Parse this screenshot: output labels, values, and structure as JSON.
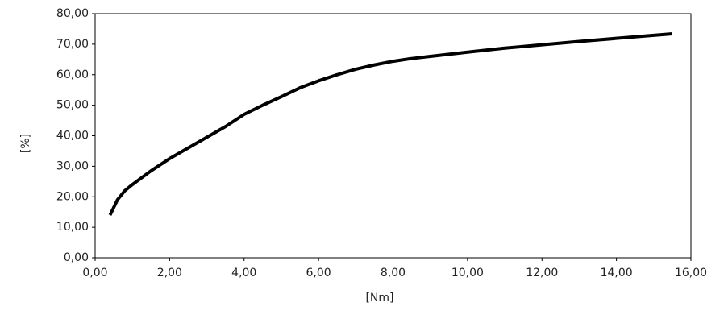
{
  "chart_data": {
    "type": "line",
    "x_label": "[Nm]",
    "y_label": "[%]",
    "x": [
      0.4,
      0.6,
      0.8,
      1.0,
      1.5,
      2.0,
      2.5,
      3.0,
      3.5,
      4.0,
      4.5,
      5.0,
      5.5,
      6.0,
      6.5,
      7.0,
      7.5,
      8.0,
      8.5,
      9.0,
      10.0,
      11.0,
      12.0,
      13.0,
      14.0,
      15.0,
      15.5
    ],
    "values": [
      14,
      19,
      22,
      24,
      28.5,
      32.5,
      36,
      39.5,
      43,
      47,
      50,
      52.8,
      55.7,
      58,
      60,
      61.8,
      63.2,
      64.4,
      65.3,
      66,
      67.4,
      68.7,
      69.8,
      70.9,
      71.9,
      72.9,
      73.4
    ],
    "color": "#000000",
    "xlim": [
      0,
      16
    ],
    "xticks": [
      {
        "value": 0,
        "label": "0,00"
      },
      {
        "value": 2,
        "label": "2,00"
      },
      {
        "value": 4,
        "label": "4,00"
      },
      {
        "value": 6,
        "label": "6,00"
      },
      {
        "value": 8,
        "label": "8,00"
      },
      {
        "value": 10,
        "label": "10,00"
      },
      {
        "value": 12,
        "label": "12,00"
      },
      {
        "value": 14,
        "label": "14,00"
      },
      {
        "value": 16,
        "label": "16,00"
      }
    ],
    "ylim": [
      0,
      80
    ],
    "yticks": [
      {
        "value": 0,
        "label": "0,00"
      },
      {
        "value": 10,
        "label": "10,00"
      },
      {
        "value": 20,
        "label": "20,00"
      },
      {
        "value": 30,
        "label": "30,00"
      },
      {
        "value": 40,
        "label": "40,00"
      },
      {
        "value": 50,
        "label": "50,00"
      },
      {
        "value": 60,
        "label": "60,00"
      },
      {
        "value": 70,
        "label": "70,00"
      },
      {
        "value": 80,
        "label": "80,00"
      }
    ],
    "grid": false
  }
}
